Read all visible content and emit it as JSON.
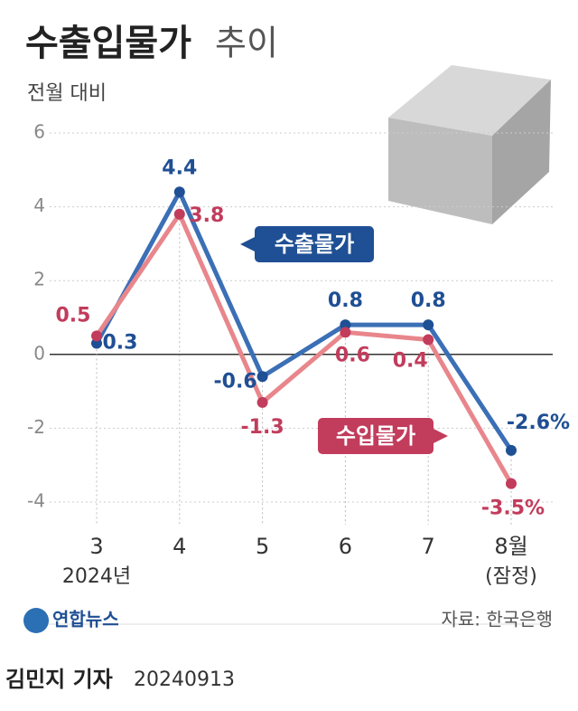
{
  "title_bold": "수출입물가",
  "title_light": "추이",
  "chart_data": {
    "type": "line",
    "subtitle": "전월 대비",
    "categories": [
      "3",
      "4",
      "5",
      "6",
      "7",
      "8월"
    ],
    "category_notes": [
      "2024년",
      null,
      null,
      null,
      null,
      "(잠정)"
    ],
    "series": [
      {
        "name": "수출물가",
        "color": "#3b6fb6",
        "label_color": "#1f4f94",
        "values": [
          0.3,
          4.4,
          -0.6,
          0.8,
          0.8,
          -2.6
        ],
        "value_labels": [
          "0.3",
          "4.4",
          "-0.6",
          "0.8",
          "0.8",
          "-2.6%"
        ]
      },
      {
        "name": "수입물가",
        "color": "#e8868c",
        "label_color": "#c23c5c",
        "values": [
          0.5,
          3.8,
          -1.3,
          0.6,
          0.4,
          -3.5
        ],
        "value_labels": [
          "0.5",
          "3.8",
          "-1.3",
          "0.6",
          "0.4",
          "-3.5%"
        ]
      }
    ],
    "ylim": [
      -4,
      6
    ],
    "yticks": [
      6,
      4,
      2,
      0,
      -2,
      -4
    ],
    "grid": true
  },
  "footer": {
    "logo": "연합뉴스",
    "source": "자료: 한국은행",
    "byline": "김민지 기자",
    "date": "20240913"
  }
}
